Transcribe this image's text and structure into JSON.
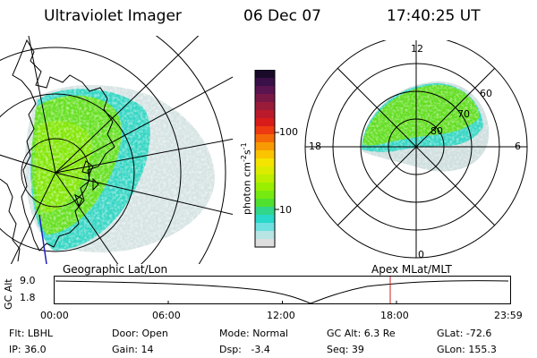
{
  "header": {
    "title": "Ultraviolet Imager",
    "date": "06 Dec 07",
    "time": "17:40:25 UT"
  },
  "colorbar": {
    "label": "photon cm",
    "label_sup1": "-2",
    "label_mid": "s",
    "label_sup2": "-1",
    "ticks": [
      "100",
      "10"
    ],
    "colors": [
      "#1a0a2a",
      "#3a1048",
      "#5a1450",
      "#7a1845",
      "#9a1c3a",
      "#ba1a2a",
      "#d81c1a",
      "#ee3a10",
      "#f46a08",
      "#f89a04",
      "#fbc400",
      "#f4e400",
      "#dcec00",
      "#bdee00",
      "#9aee00",
      "#76ea10",
      "#50e030",
      "#30d68a",
      "#28d8c8",
      "#6ee0e0",
      "#b8e4e4",
      "#dedede"
    ]
  },
  "geo_panel": {
    "label": "Geographic Lat/Lon"
  },
  "mag_panel": {
    "label": "Apex MLat/MLT",
    "mlt_labels": [
      "12",
      "18",
      "6",
      "0"
    ],
    "lat_labels": [
      "60",
      "70",
      "80"
    ]
  },
  "timeline": {
    "axis_label": "GC Alt",
    "y_ticks": [
      "9.0",
      "1.8"
    ],
    "x_ticks": [
      "00:00",
      "06:00",
      "12:00",
      "18:00",
      "23:59"
    ],
    "current_time_hours": 17.67,
    "marker_color": "#cc2222"
  },
  "status": {
    "flt": "Flt: LBHL",
    "door": "Door: Open",
    "mode_label": "Mode:",
    "mode_value": "Normal",
    "gc_alt": "GC Alt: 6.3 Re",
    "glat_label": "GLat:",
    "glat_value": "-72.6",
    "ip": "IP: 36.0",
    "gain": "Gain: 14",
    "dsp_label": "Dsp:",
    "dsp_value": "-3.4",
    "seq": "Seq: 39",
    "glon_label": "GLon:",
    "glon_value": "155.3"
  }
}
